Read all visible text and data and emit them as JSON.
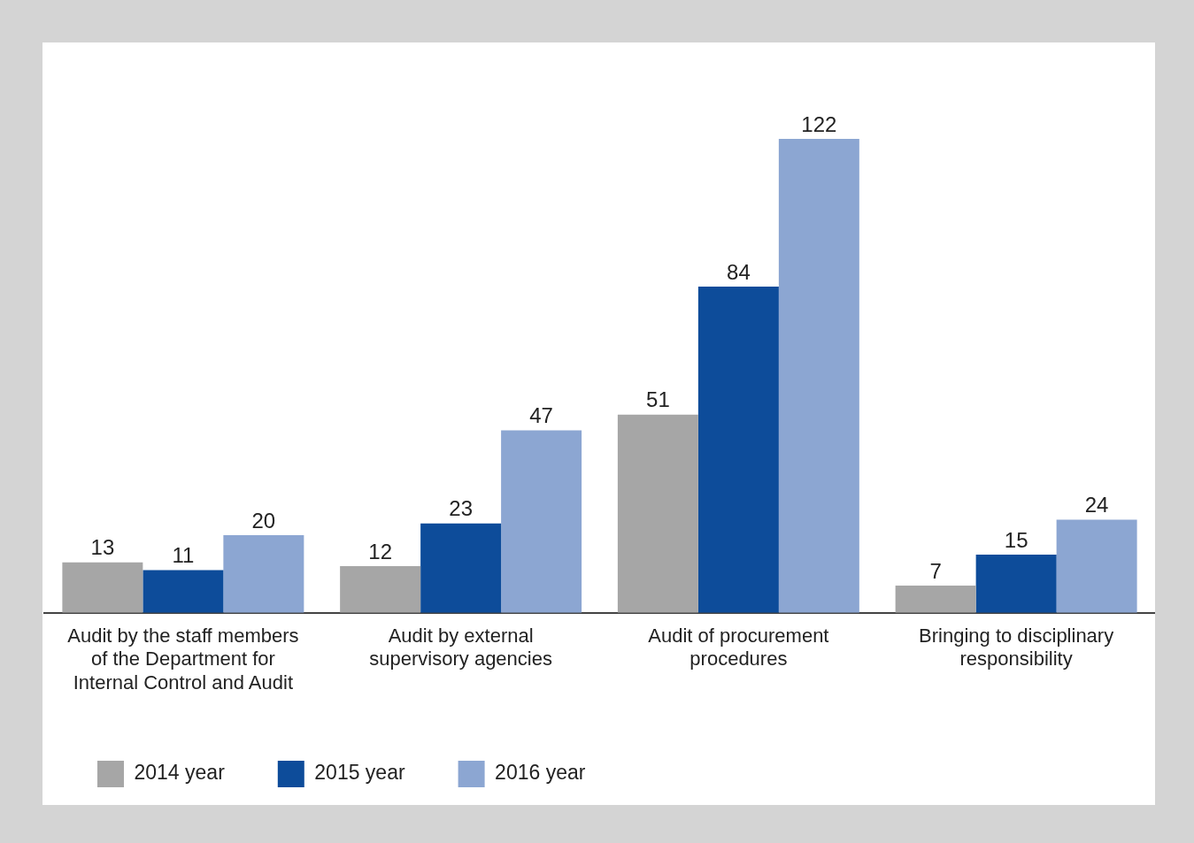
{
  "chart_data": {
    "type": "bar",
    "categories": [
      "Audit by the staff members of the Department for Internal Control and Audit",
      "Audit by external supervisory agencies",
      "Audit of procurement procedures",
      "Bringing to disciplinary responsibility"
    ],
    "series": [
      {
        "name": "2014 year",
        "color": "#a6a6a6",
        "values": [
          13,
          12,
          51,
          7
        ]
      },
      {
        "name": "2015 year",
        "color": "#0d4c9a",
        "values": [
          11,
          23,
          84,
          15
        ]
      },
      {
        "name": "2016 year",
        "color": "#8ca6d2",
        "values": [
          20,
          47,
          122,
          24
        ]
      }
    ],
    "tick_labels": "x",
    "grid": false,
    "legend": "bottom left",
    "data_labels": true
  }
}
